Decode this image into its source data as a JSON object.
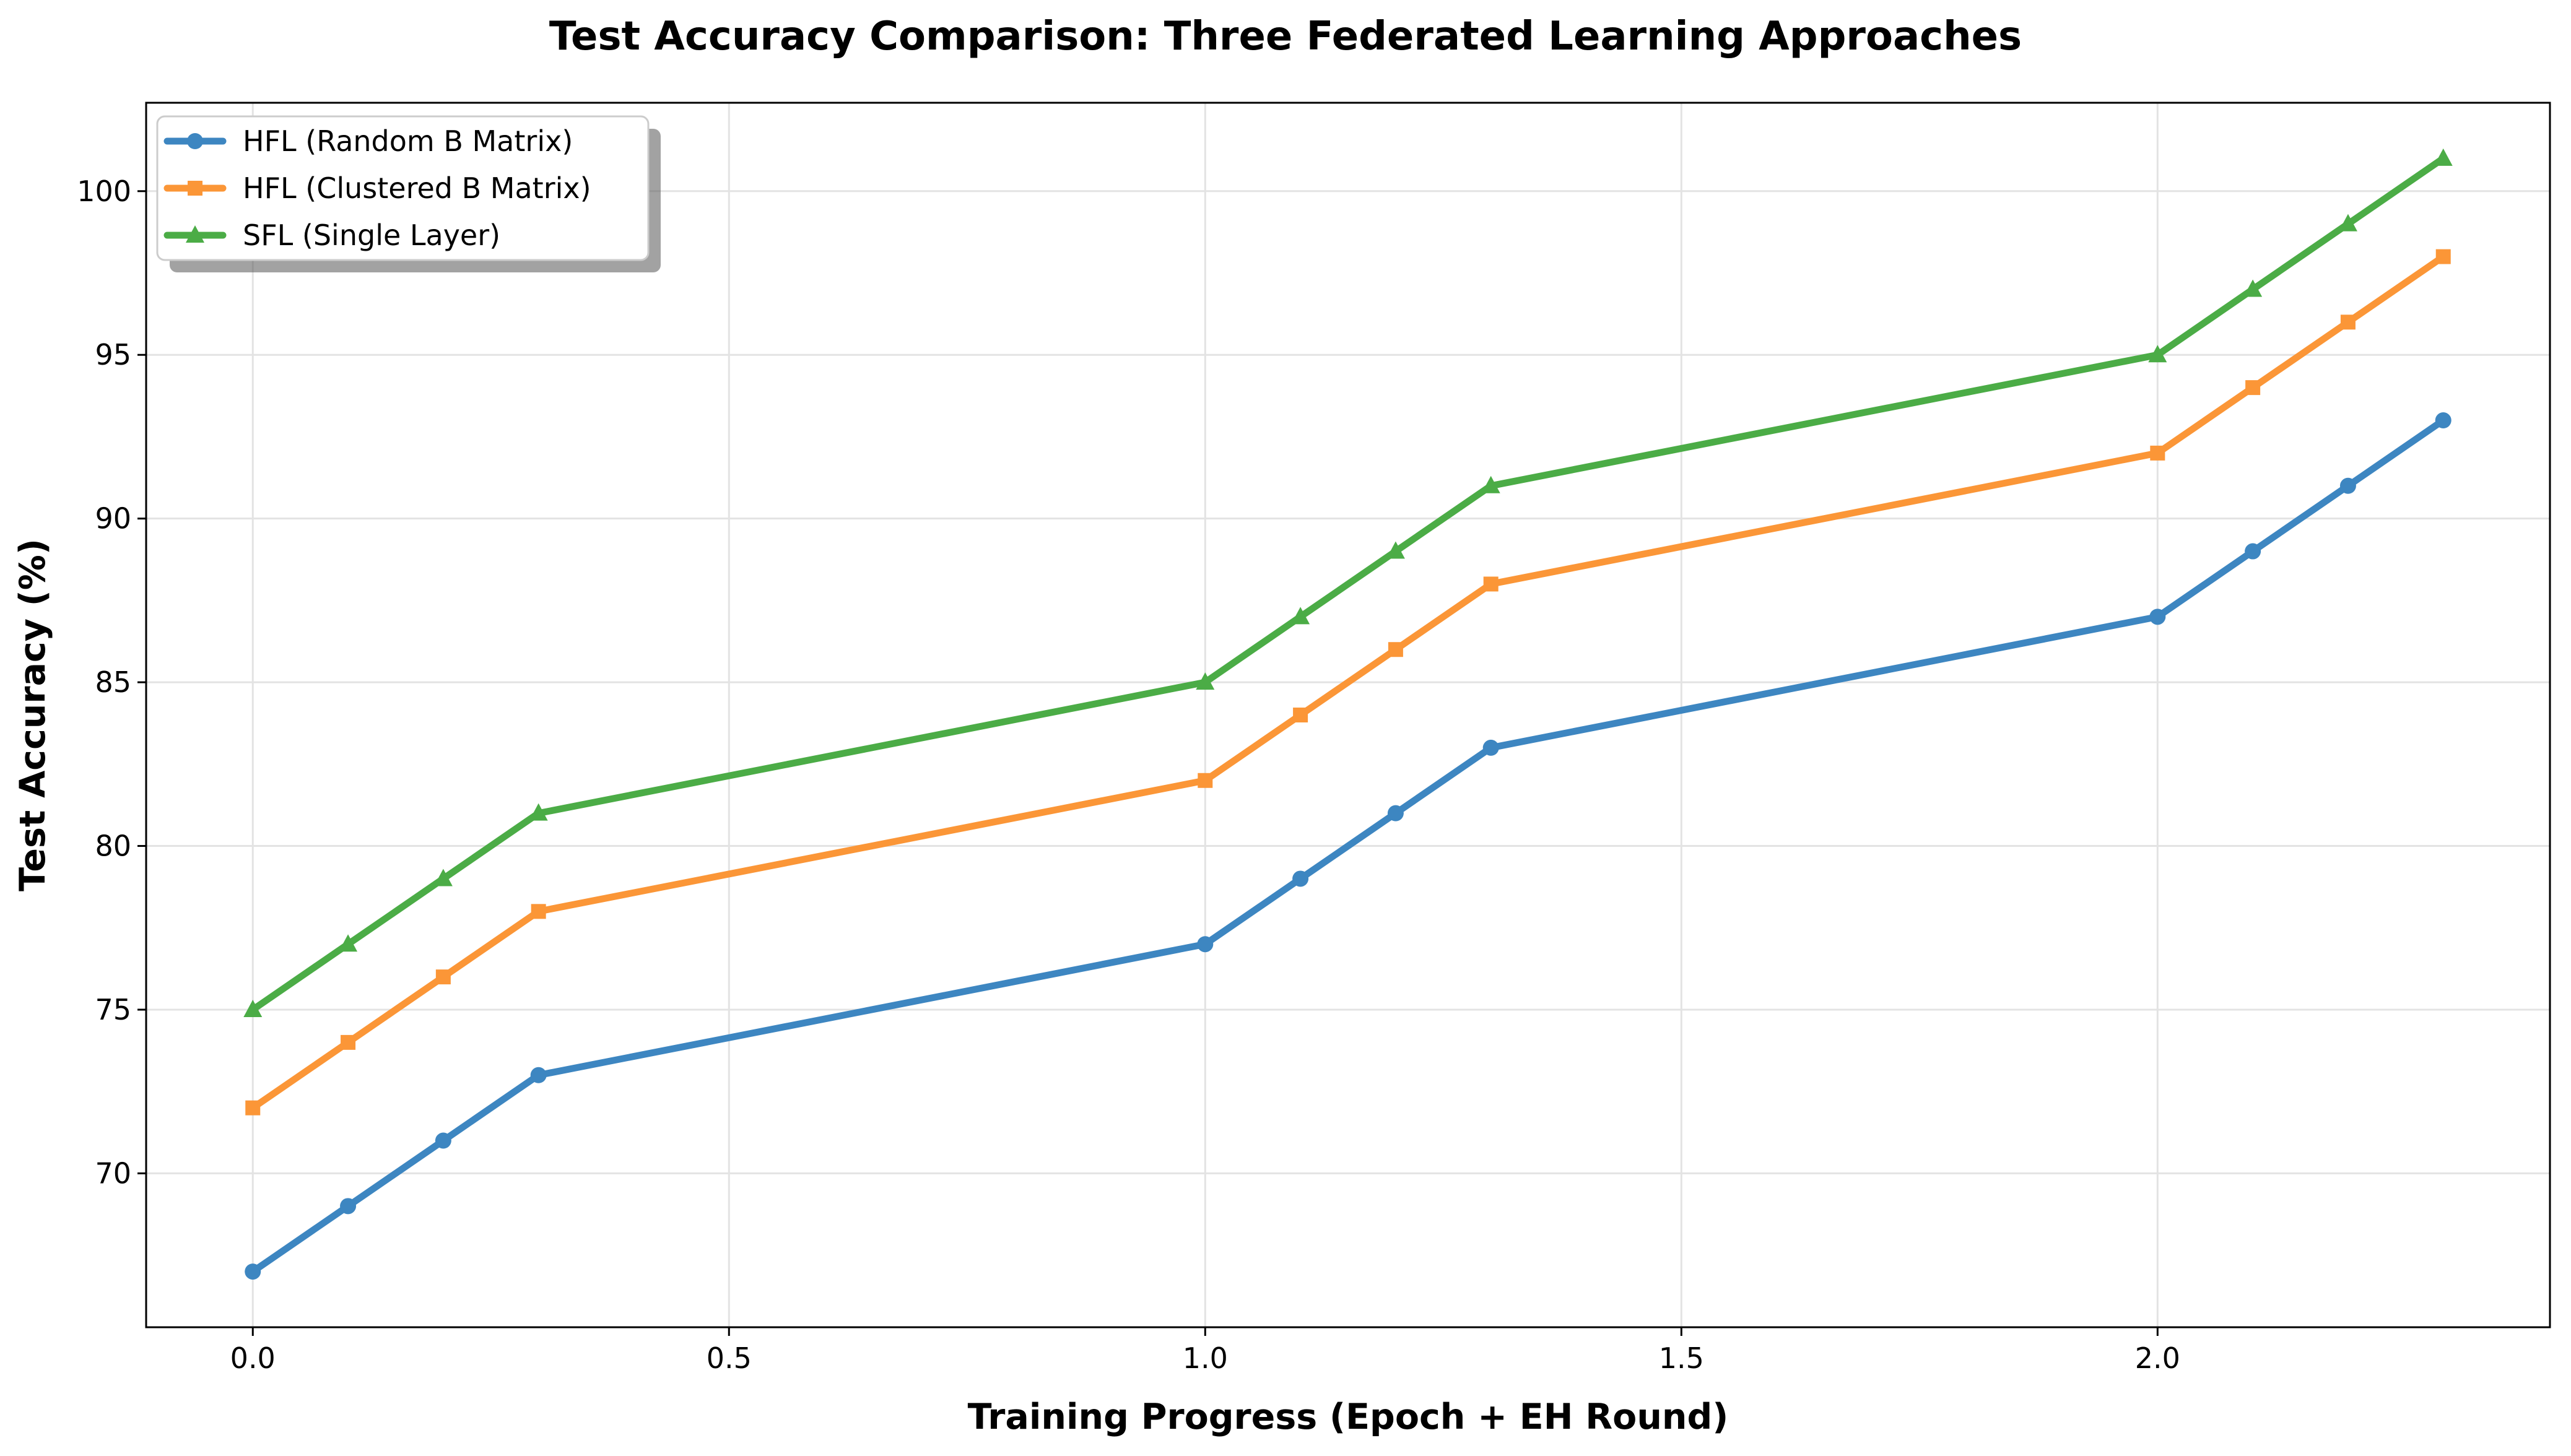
{
  "chart_data": {
    "type": "line",
    "title": "Test Accuracy Comparison: Three Federated Learning Approaches",
    "xlabel": "Training Progress (Epoch + EH Round)",
    "ylabel": "Test Accuracy (%)",
    "xlim": [
      -0.112,
      2.412
    ],
    "ylim": [
      65.3,
      102.7
    ],
    "xticks": [
      0.0,
      0.5,
      1.0,
      1.5,
      2.0
    ],
    "xtick_labels": [
      "0.0",
      "0.5",
      "1.0",
      "1.5",
      "2.0"
    ],
    "yticks": [
      70,
      75,
      80,
      85,
      90,
      95,
      100
    ],
    "ytick_labels": [
      "70",
      "75",
      "80",
      "85",
      "90",
      "95",
      "100"
    ],
    "grid": true,
    "legend_position": "top-left",
    "x": [
      0.0,
      0.1,
      0.2,
      0.3,
      1.0,
      1.1,
      1.2,
      1.3,
      2.0,
      2.1,
      2.2,
      2.3
    ],
    "series": [
      {
        "name": "HFL (Random B Matrix)",
        "color": "#3d86c1",
        "marker": "circle",
        "values": [
          67,
          69,
          71,
          73,
          77,
          79,
          81,
          83,
          87,
          89,
          91,
          93
        ]
      },
      {
        "name": "HFL (Clustered B Matrix)",
        "color": "#fb9637",
        "marker": "square",
        "values": [
          72,
          74,
          76,
          78,
          82,
          84,
          86,
          88,
          92,
          94,
          96,
          98
        ]
      },
      {
        "name": "SFL (Single Layer)",
        "color": "#4bac46",
        "marker": "triangle",
        "values": [
          75,
          77,
          79,
          81,
          85,
          87,
          89,
          91,
          95,
          97,
          99,
          101
        ]
      }
    ]
  }
}
